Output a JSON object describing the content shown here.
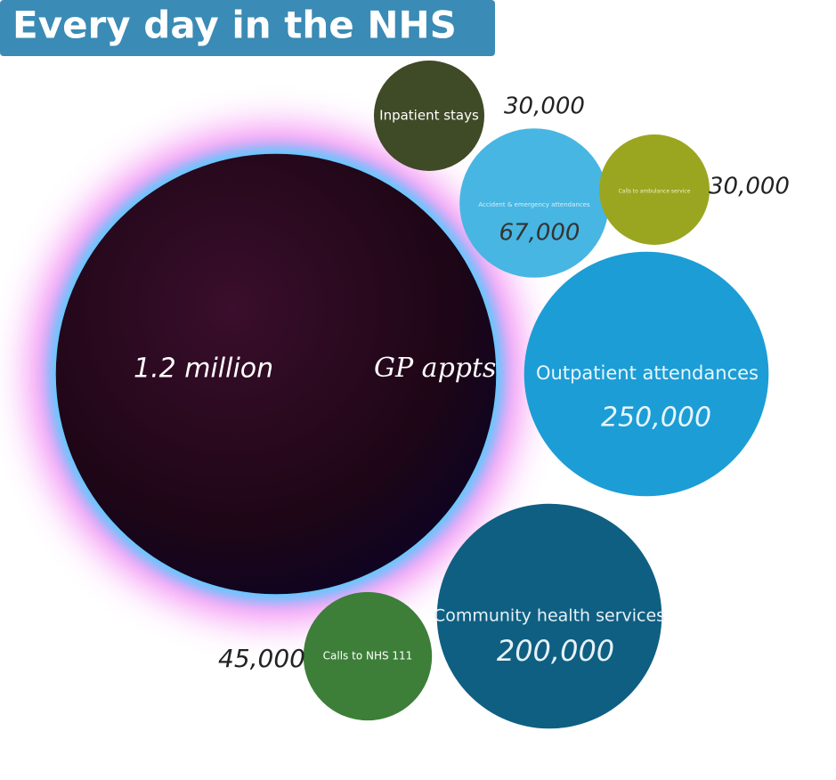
{
  "chart_data": {
    "type": "bubble",
    "title": "Every day in the NHS",
    "categories": [
      "GP appts",
      "Inpatient stays",
      "Accident & emergency attendances",
      "Calls to ambulance service",
      "Outpatient attendances",
      "Community health services",
      "Calls to NHS 111"
    ],
    "values": [
      1200000,
      30000,
      67000,
      30000,
      250000,
      200000,
      45000
    ],
    "value_labels": [
      "1.2 million",
      "30,000",
      "67,000",
      "30,000",
      "250,000",
      "200,000",
      "45,000"
    ],
    "colors": [
      "#2b0a22",
      "#3f4a26",
      "#47b6e2",
      "#9aa61f",
      "#1c9dd6",
      "#0f5f82",
      "#3d7f39"
    ]
  }
}
